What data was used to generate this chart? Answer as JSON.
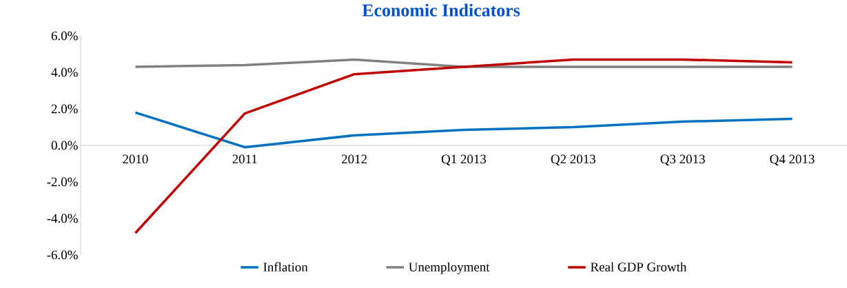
{
  "chart_data": {
    "type": "line",
    "title": "Economic Indicators",
    "categories": [
      "2010",
      "2011",
      "2012",
      "Q1 2013",
      "Q2 2013",
      "Q3 2013",
      "Q4 2013"
    ],
    "series": [
      {
        "name": "Inflation",
        "color": "#0070c0",
        "values": [
          1.8,
          -0.1,
          0.55,
          0.85,
          1.0,
          1.3,
          1.45
        ]
      },
      {
        "name": "Unemployment",
        "color": "#808080",
        "values": [
          4.3,
          4.4,
          4.7,
          4.3,
          4.3,
          4.3,
          4.3
        ]
      },
      {
        "name": "Real GDP Growth",
        "color": "#c00000",
        "values": [
          -4.8,
          1.75,
          3.9,
          4.3,
          4.7,
          4.7,
          4.55
        ]
      }
    ],
    "ylim": [
      -6,
      6
    ],
    "yticks": [
      {
        "value": -6,
        "label": "-6.0%"
      },
      {
        "value": -4,
        "label": "-4.0%"
      },
      {
        "value": -2,
        "label": "-2.0%"
      },
      {
        "value": 0,
        "label": "0.0%"
      },
      {
        "value": 2,
        "label": "2.0%"
      },
      {
        "value": 4,
        "label": "4.0%"
      },
      {
        "value": 6,
        "label": "6.0%"
      }
    ],
    "grid": false,
    "legend": "bottom",
    "marker": "none",
    "line_style": "solid"
  }
}
